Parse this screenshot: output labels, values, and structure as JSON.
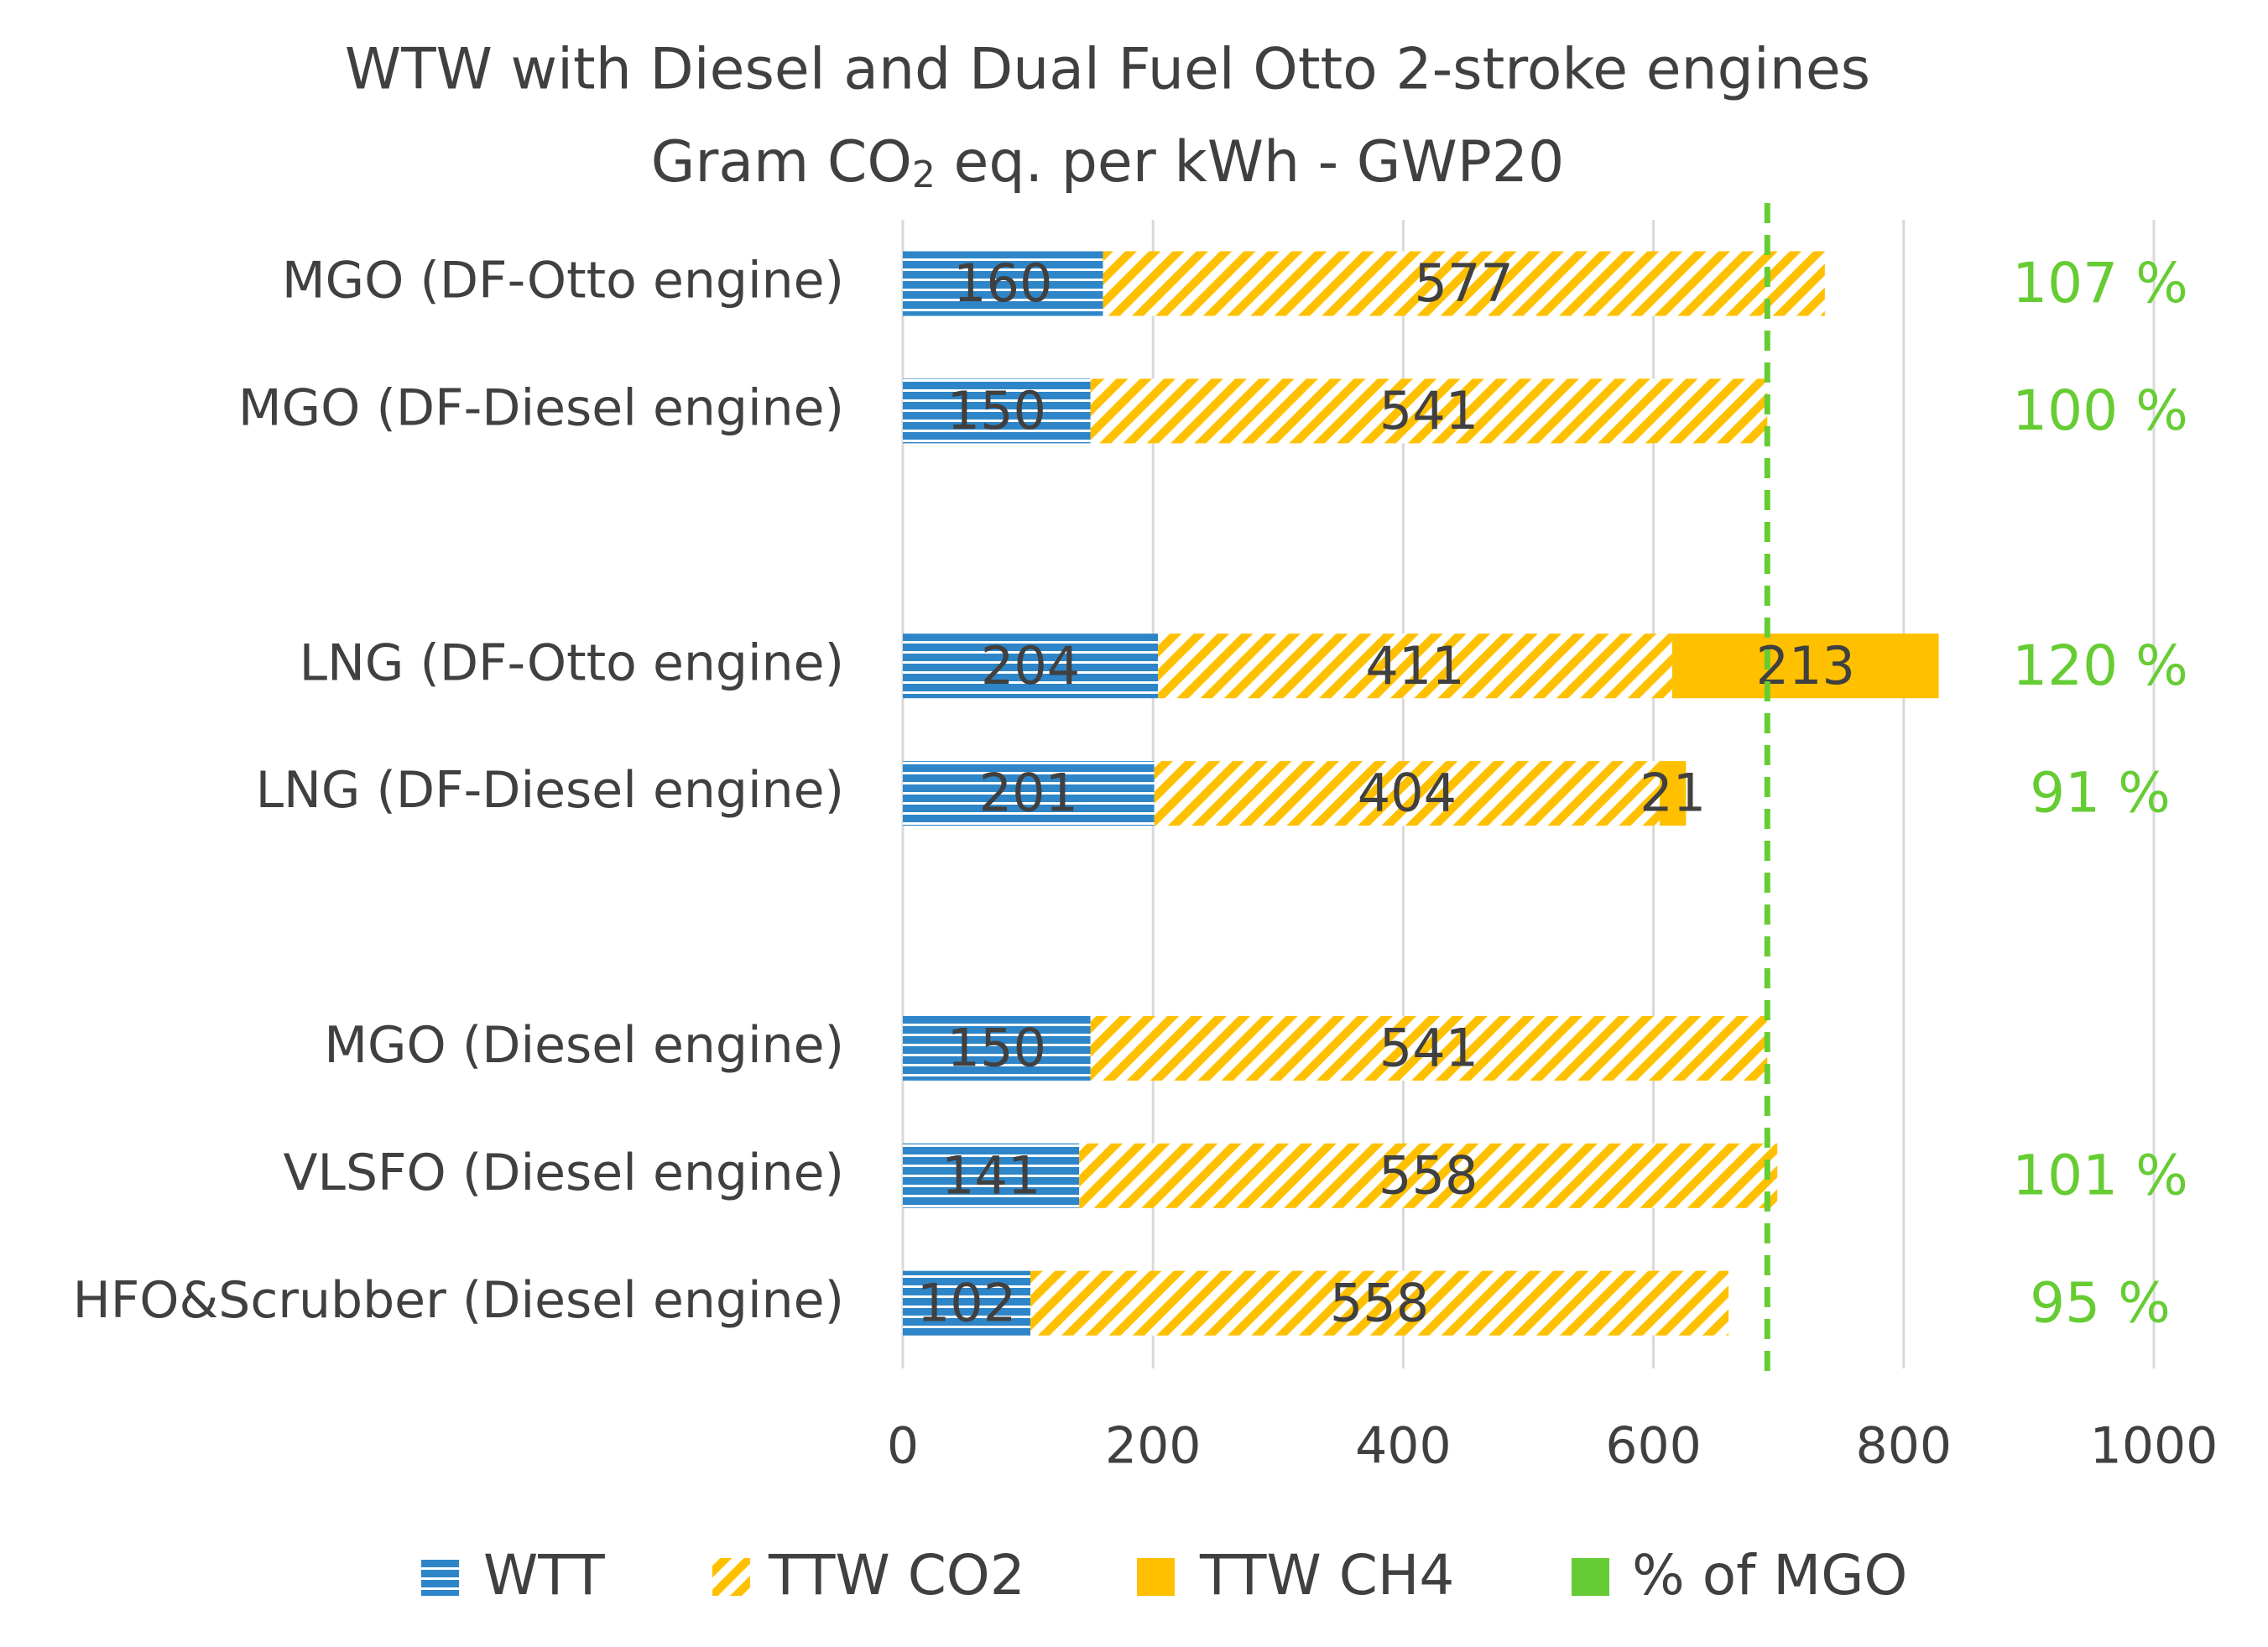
{
  "chart_data": {
    "type": "stacked-hbar",
    "title": "WTW with Diesel and Dual Fuel Otto 2-stroke engines",
    "subtitle": [
      "Gram CO",
      "2",
      " eq. per kWh - GWP20"
    ],
    "categories": [
      "MGO (DF-Otto engine)",
      "MGO (DF-Diesel engine)",
      null,
      "LNG (DF-Otto engine)",
      "LNG (DF-Diesel engine)",
      null,
      "MGO (Diesel engine)",
      "VLSFO (Diesel engine)",
      "HFO&Scrubber (Diesel engine)"
    ],
    "series": [
      {
        "name": "WTT",
        "color": "#2e86c8",
        "pattern": "horizontal",
        "values": [
          160,
          150,
          null,
          204,
          201,
          null,
          150,
          141,
          102
        ]
      },
      {
        "name": "TTW CO2",
        "color": "#ffc000",
        "pattern": "diagonal",
        "values": [
          577,
          541,
          null,
          411,
          404,
          null,
          541,
          558,
          558
        ]
      },
      {
        "name": "TTW CH4",
        "color": "#ffc000",
        "pattern": "solid",
        "values": [
          0,
          0,
          null,
          213,
          21,
          null,
          0,
          0,
          0
        ]
      },
      {
        "name": "% of MGO",
        "color": "#66cc33",
        "pattern": "solid",
        "values": [
          107,
          100,
          null,
          120,
          91,
          null,
          null,
          101,
          95
        ],
        "value_labels": [
          "107 %",
          "100 %",
          null,
          "120 %",
          "91 %",
          null,
          null,
          "101 %",
          "95 %"
        ]
      }
    ],
    "reference_line": 691,
    "xlim": [
      0,
      1000
    ],
    "xticks": [
      0,
      200,
      400,
      600,
      800,
      1000
    ],
    "grid": true
  }
}
